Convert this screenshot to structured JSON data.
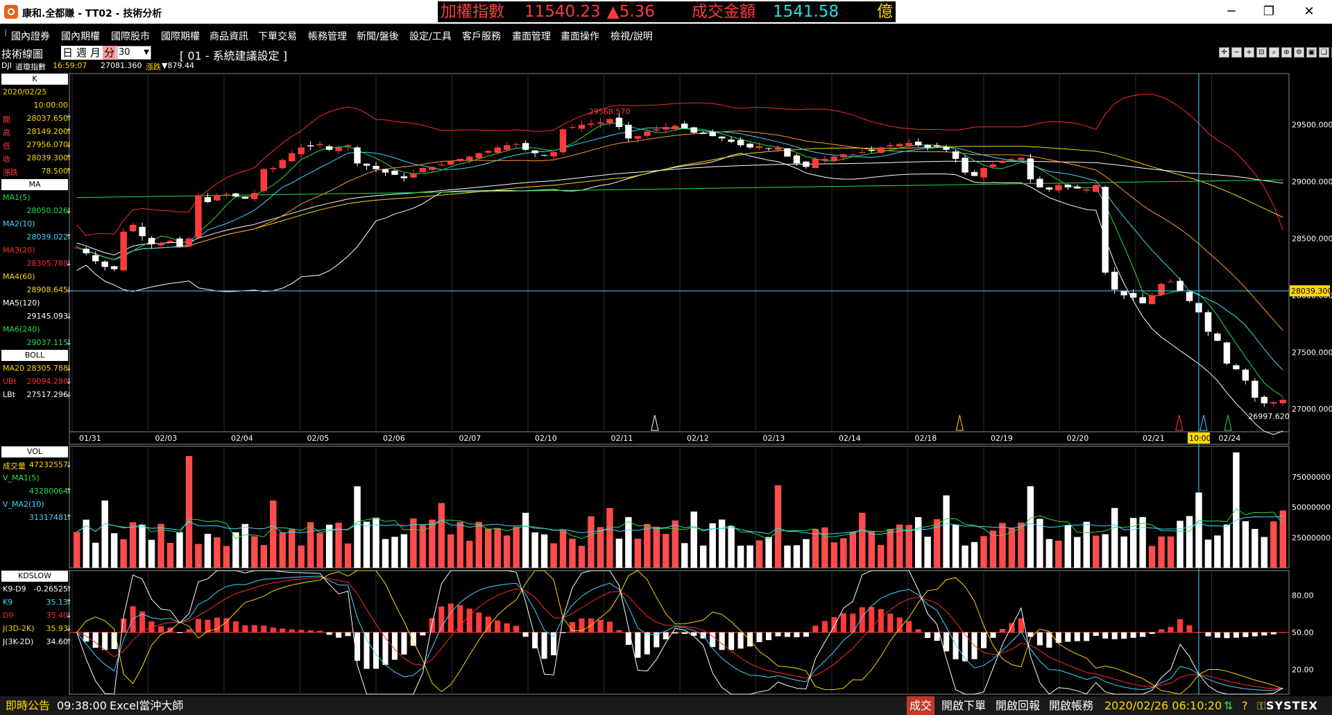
{
  "window": {
    "title": "康和.全都賺 - TT02 - 技術分析",
    "minimize_icon": "minimize-icon",
    "maximize_icon": "restore-icon",
    "close_icon": "close-icon"
  },
  "ticker": {
    "index_label": "加權指數",
    "index_value": "11540.23",
    "index_change": "▲5.36",
    "turnover_label": "成交金額",
    "turnover_value": "1541.58",
    "turnover_unit": "億",
    "colors": {
      "label": "#ff3b3b",
      "value": "#ff3b3b",
      "turnover_value": "#22e0e0",
      "unit": "#ffd800"
    }
  },
  "menu": [
    "國內證券",
    "國內期權",
    "國際股市",
    "國際期權",
    "商品資訊",
    "下單交易",
    "帳務管理",
    "新聞/盤後",
    "設定/工具",
    "客戶服務",
    "畫面管理",
    "畫面操作",
    "檢視/說明"
  ],
  "toolbar": {
    "label": "技術線圖",
    "periods": [
      "日",
      "週",
      "月",
      "分"
    ],
    "active_period": "分",
    "count": "30",
    "settings": "[ 01 - 系統建議設定 ]"
  },
  "quote": {
    "symbol": "DJI",
    "name": "道瓊指數",
    "time": "16:59:07",
    "price": "27081.360",
    "change_label": "漲跌",
    "change": "▼879.44"
  },
  "k_panel": {
    "header": "K",
    "date": "2020/02/25",
    "time": "10:00:00",
    "rows": [
      {
        "label": "開",
        "value": "28037.650",
        "arrow": "↑"
      },
      {
        "label": "高",
        "value": "28149.200",
        "arrow": "↑"
      },
      {
        "label": "低",
        "value": "27956.070",
        "arrow": "↓"
      },
      {
        "label": "收",
        "value": "28039.300",
        "arrow": "↑"
      },
      {
        "label": "漲跌",
        "value": "78.500",
        "arrow": "↑"
      }
    ]
  },
  "ma_panel": {
    "header": "MA",
    "rows": [
      {
        "label": "MA1(5)",
        "value": "28050.026",
        "arrow": "↓",
        "color": "#22e04a"
      },
      {
        "label": "MA2(10)",
        "value": "28039.022",
        "arrow": "↑",
        "color": "#3fd8ff"
      },
      {
        "label": "MA3(20)",
        "value": "28305.788",
        "arrow": "↓",
        "color": "#ff2b2b"
      },
      {
        "label": "MA4(60)",
        "value": "28908.645",
        "arrow": "↓",
        "color": "#ffd800"
      },
      {
        "label": "MA5(120)",
        "value": "29145.093",
        "arrow": "↓",
        "color": "#ffffff"
      },
      {
        "label": "MA6(240)",
        "value": "29037.115",
        "arrow": "↓",
        "color": "#22e04a"
      }
    ]
  },
  "boll_panel": {
    "header": "BOLL",
    "rows": [
      {
        "label": "MA20",
        "value": "28305.788",
        "arrow": "↓",
        "color": "#ffd800"
      },
      {
        "label": "UBt",
        "value": "29094.280",
        "arrow": "↓",
        "color": "#ff2b2b"
      },
      {
        "label": "LBt",
        "value": "27517.296",
        "arrow": "↓",
        "color": "#ffffff"
      }
    ]
  },
  "vol_panel": {
    "header": "VOL",
    "rows": [
      {
        "label": "成交量",
        "value": "47232557",
        "arrow": "↓",
        "color": "#ffd800"
      },
      {
        "label": "V_MA1(5)",
        "value": "",
        "arrow": "",
        "color": "#22e04a"
      },
      {
        "label": "",
        "value": "43280064",
        "arrow": "↑",
        "color": "#22e04a"
      },
      {
        "label": "V_MA2(10)",
        "value": "",
        "arrow": "",
        "color": "#3fd8ff"
      },
      {
        "label": "",
        "value": "31317481",
        "arrow": "↑",
        "color": "#3fd8ff"
      }
    ]
  },
  "kd_panel": {
    "header": "KDSLOW",
    "rows": [
      {
        "label": "K9-D9",
        "value": "-0.26525",
        "arrow": "↑",
        "color": "#ffffff"
      },
      {
        "label": "K9",
        "value": "35.13",
        "arrow": "↑",
        "color": "#3fd8ff"
      },
      {
        "label": "D9",
        "value": "35.40",
        "arrow": "↓",
        "color": "#ff2b2b"
      },
      {
        "label": "J(3D-2K)",
        "value": "35.93",
        "arrow": "↓",
        "color": "#ffd800"
      },
      {
        "label": "J(3K-2D)",
        "value": "34.60",
        "arrow": "↑",
        "color": "#ffffff"
      }
    ]
  },
  "chart_data": [
    {
      "type": "candlestick",
      "name": "price",
      "x_dates": [
        "01/31",
        "02/03",
        "02/04",
        "02/05",
        "02/06",
        "02/07",
        "02/10",
        "02/11",
        "02/12",
        "02/13",
        "02/14",
        "02/18",
        "02/19",
        "02/20",
        "02/21",
        "02/24"
      ],
      "ylim": [
        26800,
        29950
      ],
      "y_ticks": [
        "29500.000",
        "29000.000",
        "28500.000",
        "28000.000",
        "27500.000",
        "27000.000"
      ],
      "y_tick_values": [
        29500,
        29000,
        28500,
        28000,
        27500,
        27000
      ],
      "crosshair_value": "28039.300",
      "crosshair_time": "10:00",
      "high_label": "29568.570",
      "low_label": "26997.620",
      "closes": [
        28420,
        28370,
        28300,
        28250,
        28230,
        28560,
        28620,
        28520,
        28450,
        28460,
        28480,
        28430,
        28500,
        28880,
        28820,
        28880,
        28890,
        28870,
        28850,
        28900,
        29110,
        29120,
        29190,
        29250,
        29300,
        29310,
        29330,
        29280,
        29300,
        29320,
        29160,
        29140,
        29110,
        29080,
        29060,
        29030,
        29070,
        29120,
        29130,
        29150,
        29180,
        29200,
        29220,
        29250,
        29270,
        29300,
        29320,
        29330,
        29280,
        29250,
        29230,
        29260,
        29460,
        29480,
        29500,
        29510,
        29520,
        29550,
        29480,
        29380,
        29400,
        29440,
        29460,
        29480,
        29490,
        29470,
        29430,
        29420,
        29400,
        29380,
        29350,
        29320,
        29300,
        29310,
        29290,
        29300,
        29220,
        29160,
        29130,
        29200,
        29200,
        29220,
        29240,
        29240,
        29260,
        29270,
        29300,
        29320,
        29330,
        29340,
        29320,
        29300,
        29310,
        29280,
        29200,
        29080,
        29050,
        29120,
        29150,
        29180,
        29200,
        29210,
        29020,
        28950,
        28930,
        28970,
        28950,
        28940,
        28930,
        28970,
        28200,
        28050,
        28000,
        27980,
        27930,
        28000,
        28100,
        28120,
        28040,
        27950,
        27850,
        27680,
        27600,
        27400,
        27350,
        27250,
        27100,
        27050,
        27060,
        27081
      ],
      "volume_ylim": [
        0,
        100000000
      ],
      "volume_ticks": [
        "75000000",
        "50000000",
        "25000000"
      ],
      "volume_tick_values": [
        75000000,
        50000000,
        25000000
      ],
      "kd_ylim": [
        0,
        100
      ],
      "kd_ticks": [
        "80.00",
        "50.00",
        "20.00"
      ],
      "kd_tick_values": [
        80,
        50,
        20
      ]
    }
  ],
  "status": {
    "announce_label": "即時公告",
    "time": "09:38:00",
    "message": "Excel當沖大師",
    "trade": "成交",
    "buttons": [
      "開啟下單",
      "開啟回報",
      "開啟帳務"
    ],
    "datetime": "2020/02/26 06:10:20",
    "brand": "SYSTEX"
  }
}
